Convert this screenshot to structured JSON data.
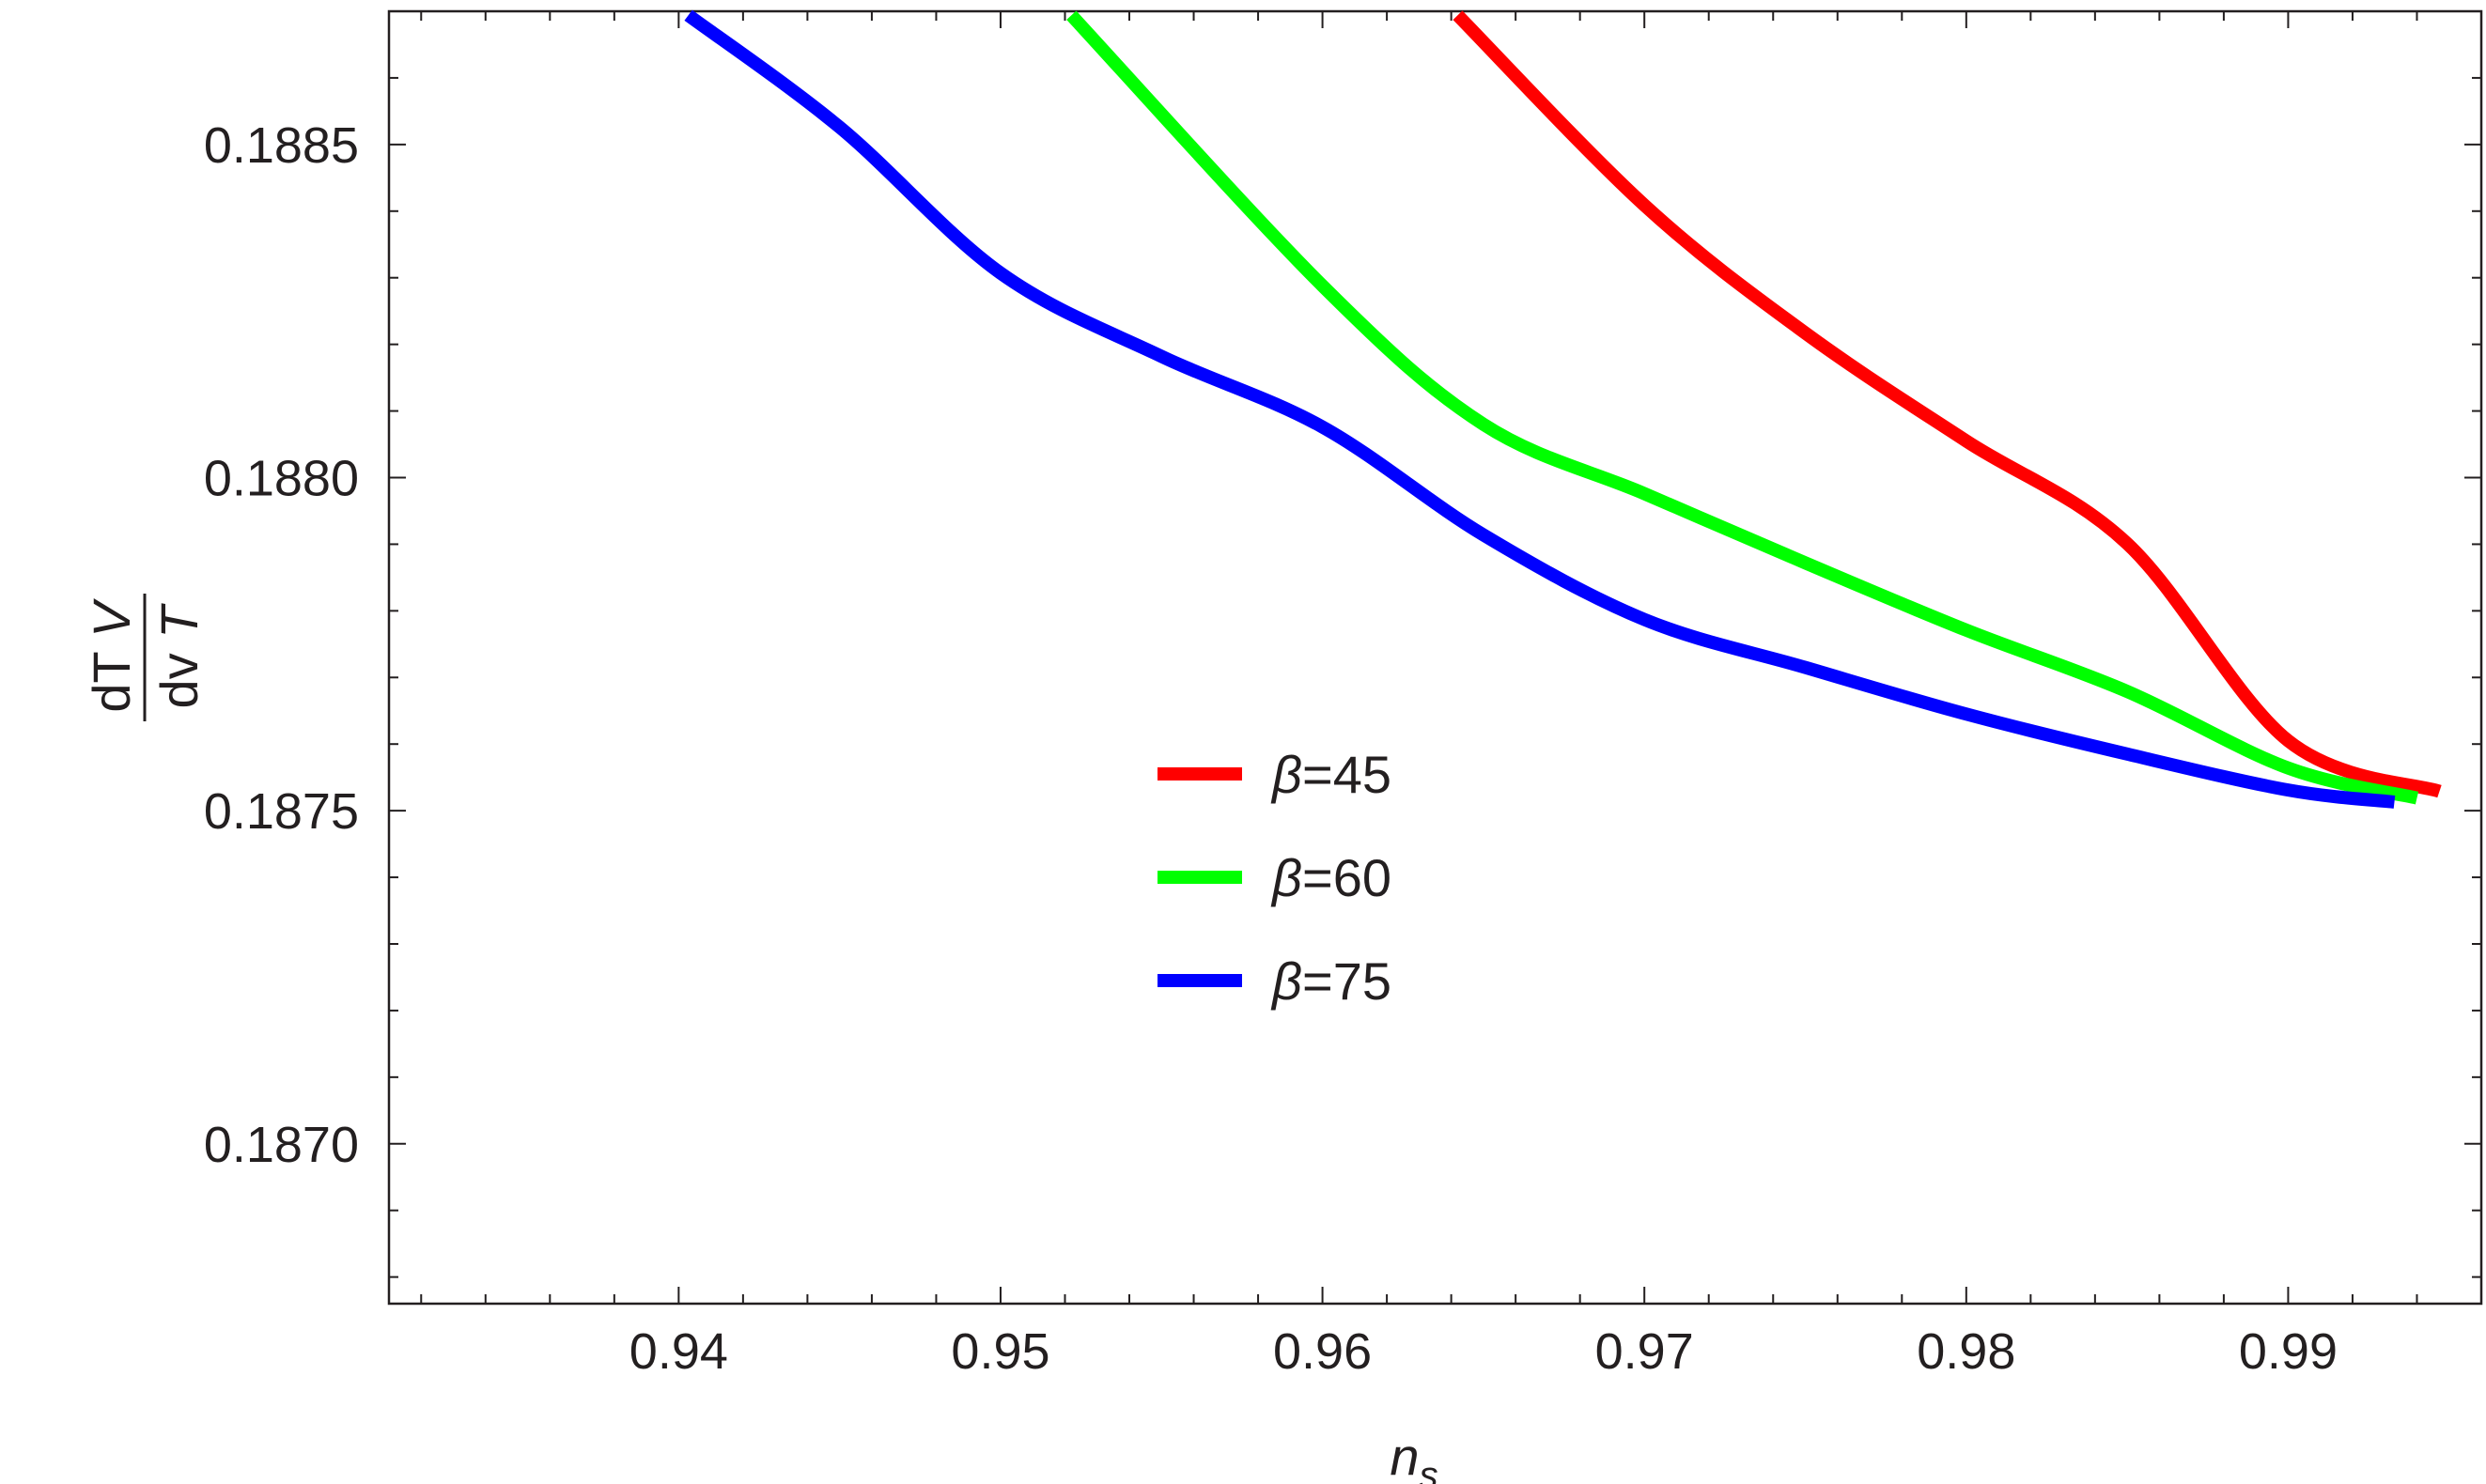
{
  "chart_data": {
    "type": "line",
    "title": "",
    "xlabel": {
      "base": "n",
      "subscript": "s"
    },
    "ylabel": {
      "numerator": [
        "dT ",
        "V"
      ],
      "denominator": [
        "dv ",
        "T"
      ]
    },
    "xlim": [
      0.931,
      0.996
    ],
    "ylim": [
      0.18676,
      0.1887
    ],
    "x_ticks": [
      0.94,
      0.95,
      0.96,
      0.97,
      0.98,
      0.99
    ],
    "x_tick_labels": [
      "0.94",
      "0.95",
      "0.96",
      "0.97",
      "0.98",
      "0.99"
    ],
    "y_ticks": [
      0.187,
      0.1875,
      0.188,
      0.1885
    ],
    "y_tick_labels": [
      "0.1870",
      "0.1875",
      "0.1880",
      "0.1885"
    ],
    "grid": false,
    "legend_position": "center",
    "series": [
      {
        "name": "β=45",
        "color": "#ff0000",
        "x": [
          0.9642,
          0.97,
          0.975,
          0.98,
          0.985,
          0.99,
          0.9947
        ],
        "y": [
          0.188694,
          0.188409,
          0.188217,
          0.188055,
          0.187901,
          0.187605,
          0.187529
        ]
      },
      {
        "name": "β=60",
        "color": "#00ff00",
        "x": [
          0.9522,
          0.96,
          0.965,
          0.97,
          0.975,
          0.98,
          0.985,
          0.99,
          0.994
        ],
        "y": [
          0.188694,
          0.188288,
          0.18808,
          0.187976,
          0.187872,
          0.187771,
          0.187679,
          0.187564,
          0.187519
        ]
      },
      {
        "name": "β=75",
        "color": "#0000ff",
        "x": [
          0.9403,
          0.945,
          0.95,
          0.955,
          0.96,
          0.965,
          0.97,
          0.975,
          0.98,
          0.985,
          0.99,
          0.9933
        ],
        "y": [
          0.188694,
          0.188526,
          0.188307,
          0.188182,
          0.188076,
          0.187914,
          0.187787,
          0.187715,
          0.187645,
          0.187585,
          0.187531,
          0.187513
        ]
      }
    ]
  }
}
